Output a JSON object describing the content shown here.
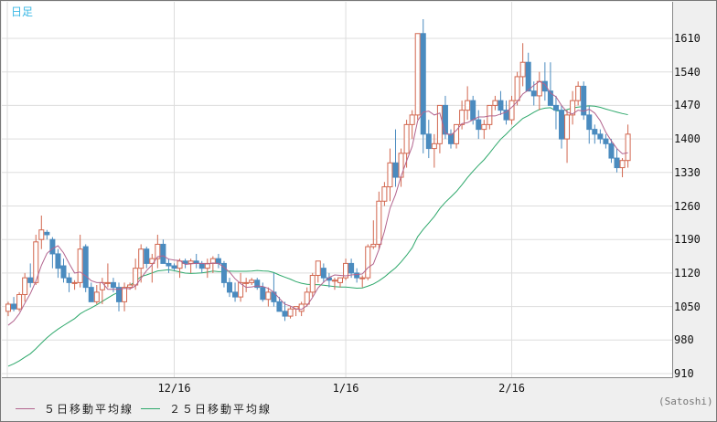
{
  "header": {
    "title": "日足"
  },
  "colors": {
    "up": "#d2674f",
    "down": "#4a8bbf",
    "ma5": "#b2648e",
    "ma25": "#2ea86b",
    "grid": "#dddddd",
    "title": "#3bb8e6"
  },
  "legend": {
    "ma5_label": "５日移動平均線",
    "ma25_label": "２５日移動平均線"
  },
  "unit_label": "(Satoshi)",
  "chart_data": {
    "type": "candlestick",
    "title": "日足",
    "ylabel": "(Satoshi)",
    "ylim": [
      910,
      1680
    ],
    "yticks": [
      910,
      980,
      1050,
      1120,
      1190,
      1260,
      1330,
      1400,
      1470,
      1540,
      1610
    ],
    "xticks": [
      {
        "label": "12/16",
        "index": 30
      },
      {
        "label": "1/16",
        "index": 61
      },
      {
        "label": "2/16",
        "index": 91
      }
    ],
    "grid": true,
    "legend_position": "bottom-left",
    "series_ma": [
      {
        "name": "５日移動平均線",
        "period": 5
      },
      {
        "name": "２５日移動平均線",
        "period": 25
      }
    ],
    "ohlc": [
      [
        1040,
        1060,
        1030,
        1055
      ],
      [
        1055,
        1070,
        1040,
        1045
      ],
      [
        1045,
        1080,
        1040,
        1075
      ],
      [
        1075,
        1120,
        1060,
        1110
      ],
      [
        1110,
        1140,
        1090,
        1100
      ],
      [
        1100,
        1200,
        1095,
        1185
      ],
      [
        1190,
        1240,
        1170,
        1210
      ],
      [
        1205,
        1210,
        1190,
        1200
      ],
      [
        1190,
        1195,
        1130,
        1160
      ],
      [
        1160,
        1170,
        1110,
        1130
      ],
      [
        1135,
        1150,
        1100,
        1110
      ],
      [
        1110,
        1120,
        1080,
        1100
      ],
      [
        1100,
        1105,
        1085,
        1100
      ],
      [
        1100,
        1200,
        1090,
        1170
      ],
      [
        1175,
        1180,
        1080,
        1090
      ],
      [
        1090,
        1100,
        1060,
        1060
      ],
      [
        1060,
        1095,
        1055,
        1080
      ],
      [
        1085,
        1110,
        1055,
        1100
      ],
      [
        1100,
        1140,
        1090,
        1100
      ],
      [
        1100,
        1110,
        1080,
        1090
      ],
      [
        1090,
        1100,
        1040,
        1060
      ],
      [
        1060,
        1100,
        1040,
        1090
      ],
      [
        1090,
        1100,
        1085,
        1095
      ],
      [
        1095,
        1150,
        1085,
        1130
      ],
      [
        1130,
        1180,
        1100,
        1170
      ],
      [
        1170,
        1175,
        1130,
        1140
      ],
      [
        1140,
        1160,
        1100,
        1150
      ],
      [
        1150,
        1200,
        1130,
        1180
      ],
      [
        1180,
        1190,
        1140,
        1140
      ],
      [
        1140,
        1150,
        1120,
        1135
      ],
      [
        1135,
        1140,
        1125,
        1130
      ],
      [
        1130,
        1150,
        1110,
        1145
      ],
      [
        1145,
        1150,
        1130,
        1140
      ],
      [
        1140,
        1150,
        1120,
        1145
      ],
      [
        1145,
        1160,
        1130,
        1140
      ],
      [
        1140,
        1145,
        1120,
        1130
      ],
      [
        1130,
        1150,
        1110,
        1140
      ],
      [
        1140,
        1155,
        1120,
        1150
      ],
      [
        1150,
        1160,
        1130,
        1140
      ],
      [
        1140,
        1145,
        1090,
        1100
      ],
      [
        1100,
        1110,
        1070,
        1080
      ],
      [
        1080,
        1100,
        1060,
        1070
      ],
      [
        1070,
        1120,
        1060,
        1100
      ],
      [
        1100,
        1110,
        1080,
        1100
      ],
      [
        1100,
        1110,
        1095,
        1105
      ],
      [
        1105,
        1110,
        1085,
        1090
      ],
      [
        1090,
        1100,
        1060,
        1065
      ],
      [
        1065,
        1090,
        1050,
        1080
      ],
      [
        1080,
        1120,
        1050,
        1060
      ],
      [
        1060,
        1070,
        1040,
        1040
      ],
      [
        1040,
        1060,
        1020,
        1030
      ],
      [
        1030,
        1050,
        1025,
        1045
      ],
      [
        1045,
        1050,
        1030,
        1050
      ],
      [
        1040,
        1060,
        1030,
        1055
      ],
      [
        1055,
        1090,
        1050,
        1080
      ],
      [
        1080,
        1120,
        1070,
        1115
      ],
      [
        1115,
        1140,
        1100,
        1145
      ],
      [
        1130,
        1140,
        1100,
        1110
      ],
      [
        1110,
        1120,
        1090,
        1105
      ],
      [
        1105,
        1110,
        1085,
        1105
      ],
      [
        1100,
        1110,
        1090,
        1110
      ],
      [
        1110,
        1150,
        1105,
        1140
      ],
      [
        1140,
        1150,
        1110,
        1120
      ],
      [
        1120,
        1130,
        1100,
        1110
      ],
      [
        1110,
        1115,
        1090,
        1110
      ],
      [
        1110,
        1180,
        1105,
        1175
      ],
      [
        1175,
        1230,
        1170,
        1180
      ],
      [
        1180,
        1290,
        1170,
        1270
      ],
      [
        1270,
        1310,
        1260,
        1300
      ],
      [
        1300,
        1380,
        1270,
        1350
      ],
      [
        1350,
        1420,
        1300,
        1320
      ],
      [
        1320,
        1380,
        1300,
        1370
      ],
      [
        1370,
        1440,
        1340,
        1430
      ],
      [
        1430,
        1460,
        1400,
        1450
      ],
      [
        1450,
        1620,
        1440,
        1620
      ],
      [
        1620,
        1650,
        1370,
        1410
      ],
      [
        1410,
        1440,
        1360,
        1380
      ],
      [
        1380,
        1410,
        1340,
        1390
      ],
      [
        1390,
        1470,
        1370,
        1470
      ],
      [
        1470,
        1490,
        1400,
        1410
      ],
      [
        1410,
        1420,
        1380,
        1390
      ],
      [
        1390,
        1420,
        1380,
        1430
      ],
      [
        1430,
        1480,
        1420,
        1460
      ],
      [
        1460,
        1510,
        1440,
        1480
      ],
      [
        1480,
        1490,
        1430,
        1440
      ],
      [
        1440,
        1460,
        1400,
        1420
      ],
      [
        1420,
        1440,
        1400,
        1430
      ],
      [
        1430,
        1470,
        1420,
        1470
      ],
      [
        1470,
        1490,
        1460,
        1480
      ],
      [
        1480,
        1500,
        1450,
        1460
      ],
      [
        1460,
        1480,
        1430,
        1440
      ],
      [
        1440,
        1490,
        1430,
        1480
      ],
      [
        1480,
        1540,
        1470,
        1530
      ],
      [
        1530,
        1600,
        1510,
        1560
      ],
      [
        1560,
        1580,
        1500,
        1500
      ],
      [
        1500,
        1520,
        1470,
        1490
      ],
      [
        1490,
        1540,
        1460,
        1520
      ],
      [
        1520,
        1560,
        1480,
        1500
      ],
      [
        1500,
        1560,
        1480,
        1470
      ],
      [
        1470,
        1490,
        1420,
        1460
      ],
      [
        1460,
        1470,
        1380,
        1400
      ],
      [
        1400,
        1460,
        1350,
        1450
      ],
      [
        1450,
        1500,
        1430,
        1480
      ],
      [
        1480,
        1520,
        1470,
        1510
      ],
      [
        1510,
        1520,
        1440,
        1450
      ],
      [
        1450,
        1470,
        1390,
        1420
      ],
      [
        1420,
        1430,
        1390,
        1410
      ],
      [
        1410,
        1420,
        1390,
        1400
      ],
      [
        1400,
        1410,
        1380,
        1390
      ],
      [
        1390,
        1400,
        1350,
        1360
      ],
      [
        1360,
        1380,
        1330,
        1340
      ],
      [
        1340,
        1360,
        1320,
        1355
      ],
      [
        1355,
        1430,
        1340,
        1410
      ]
    ]
  }
}
